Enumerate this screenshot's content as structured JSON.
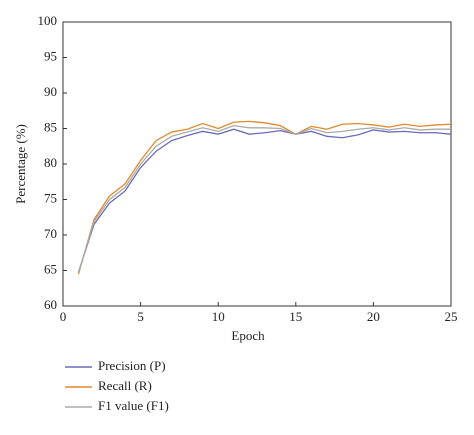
{
  "chart_data": {
    "type": "line",
    "x_label": "Epoch",
    "y_label": "Percentage (%)",
    "x": [
      1,
      2,
      3,
      4,
      5,
      6,
      7,
      8,
      9,
      10,
      11,
      12,
      13,
      14,
      15,
      16,
      17,
      18,
      19,
      20,
      21,
      22,
      23,
      24,
      25
    ],
    "series": [
      {
        "name": "Precision (P)",
        "color": "#6b6bb8",
        "values": [
          64.8,
          71.5,
          74.5,
          76.2,
          79.5,
          81.8,
          83.3,
          84.0,
          84.6,
          84.2,
          84.9,
          84.2,
          84.4,
          84.7,
          84.2,
          84.6,
          83.9,
          83.7,
          84.1,
          84.8,
          84.5,
          84.6,
          84.4,
          84.4,
          84.2
        ]
      },
      {
        "name": "Recall (R)",
        "color": "#e0892c",
        "values": [
          64.5,
          72.2,
          75.5,
          77.2,
          80.5,
          83.3,
          84.5,
          84.9,
          85.7,
          85.0,
          85.9,
          86.0,
          85.8,
          85.4,
          84.2,
          85.3,
          84.9,
          85.6,
          85.7,
          85.5,
          85.2,
          85.6,
          85.3,
          85.5,
          85.6
        ]
      },
      {
        "name": "F1 value (F1)",
        "color": "#aaaaaa",
        "values": [
          64.7,
          71.9,
          75.0,
          76.7,
          80.0,
          82.5,
          83.9,
          84.5,
          85.1,
          84.6,
          85.4,
          85.1,
          85.1,
          85.0,
          84.2,
          85.0,
          84.4,
          84.6,
          84.9,
          85.1,
          84.8,
          85.1,
          84.8,
          84.9,
          84.9
        ]
      }
    ],
    "xlim": [
      0,
      25
    ],
    "xticks": [
      0,
      5,
      10,
      15,
      20,
      25
    ],
    "ylim": [
      60,
      100
    ],
    "yticks": [
      60,
      65,
      70,
      75,
      80,
      85,
      90,
      95,
      100
    ]
  }
}
